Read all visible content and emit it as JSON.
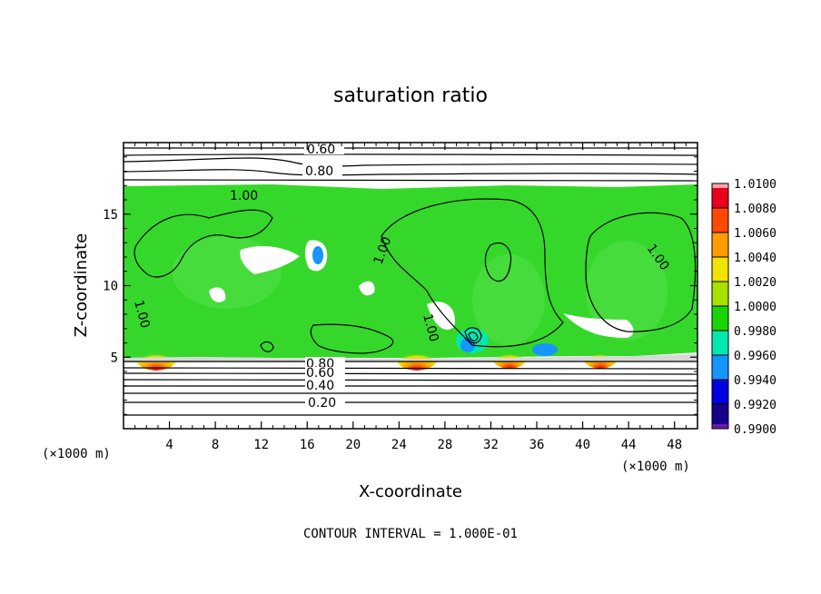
{
  "chart_data": {
    "type": "heatmap",
    "title": "saturation ratio",
    "xlabel": "X-coordinate",
    "ylabel": "Z-coordinate",
    "x_unit_left": "(×1000 m)",
    "x_unit_right": "(×1000 m)",
    "xlim": [
      0,
      50
    ],
    "ylim": [
      0,
      20
    ],
    "x_ticks": [
      4,
      8,
      12,
      16,
      20,
      24,
      28,
      32,
      36,
      40,
      44,
      48
    ],
    "y_ticks": [
      5,
      10,
      15
    ],
    "note": "CONTOUR INTERVAL = 1.000E-01",
    "contour_labels": [
      "0.60",
      "0.80",
      "1.00",
      "1.00",
      "1.00",
      "1.00",
      "1.00",
      "0.80",
      "0.60",
      "0.40",
      "0.20"
    ],
    "colorbar": {
      "levels": [
        "1.0100",
        "1.0080",
        "1.0060",
        "1.0040",
        "1.0020",
        "1.0000",
        "0.9980",
        "0.9960",
        "0.9940",
        "0.9920",
        "0.9900"
      ],
      "colors": [
        "#f7a3b4",
        "#e8001c",
        "#ff4a00",
        "#ff9c00",
        "#f2e400",
        "#a8e000",
        "#19d400",
        "#00e8b0",
        "#1495ff",
        "#0000e0",
        "#16008c",
        "#6a1aa8"
      ]
    },
    "field_description_colors": {
      "background": "#ffffff",
      "cloud_layer": "#35d82a"
    }
  }
}
